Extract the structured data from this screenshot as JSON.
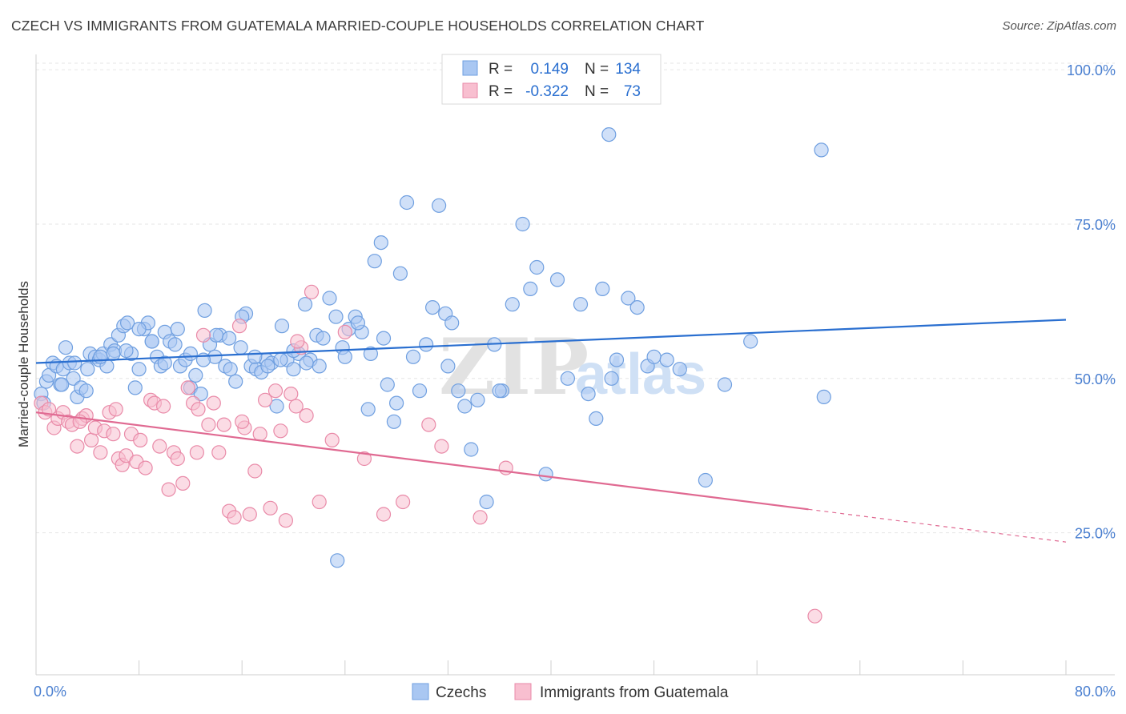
{
  "title": "CZECH VS IMMIGRANTS FROM GUATEMALA MARRIED-COUPLE HOUSEHOLDS CORRELATION CHART",
  "source": "Source: ZipAtlas.com",
  "watermark": {
    "zip": "ZIP",
    "atlas": "atlas"
  },
  "legend_top": [
    {
      "r_label": "R =",
      "r_value": "0.149",
      "n_label": "N =",
      "n_value": "134",
      "color": "#a9c7f2",
      "border": "#6f9fe0"
    },
    {
      "r_label": "R =",
      "r_value": "-0.322",
      "n_label": "N =",
      "n_value": "73",
      "color": "#f8bfd0",
      "border": "#e98aa8"
    }
  ],
  "legend_bottom": [
    {
      "label": "Czechs",
      "color": "#a9c7f2",
      "border": "#6f9fe0"
    },
    {
      "label": "Immigrants from Guatemala",
      "color": "#f8bfd0",
      "border": "#e98aa8"
    }
  ],
  "chart_data": {
    "type": "scatter",
    "title": "CZECH VS IMMIGRANTS FROM GUATEMALA MARRIED-COUPLE HOUSEHOLDS CORRELATION CHART",
    "xlabel": "",
    "ylabel": "Married-couple Households",
    "xlim": [
      0,
      80
    ],
    "ylim": [
      2,
      103
    ],
    "x_tick_labels": [
      "0.0%",
      "80.0%"
    ],
    "y_ticks": [
      25,
      50,
      75,
      100
    ],
    "y_tick_labels": [
      "25.0%",
      "50.0%",
      "75.0%",
      "100.0%"
    ],
    "grid": true,
    "series": [
      {
        "name": "Czechs",
        "color": "#6f9fe0",
        "fill": "#a9c7f2",
        "line_color": "#2a6fd0",
        "trend": {
          "x": [
            0,
            80
          ],
          "y": [
            52.5,
            59.5
          ]
        },
        "points": [
          [
            0.4,
            47.5
          ],
          [
            0.6,
            46.0
          ],
          [
            0.8,
            49.5
          ],
          [
            1.0,
            50.5
          ],
          [
            1.3,
            52.5
          ],
          [
            1.6,
            52.0
          ],
          [
            1.9,
            49.0
          ],
          [
            2.1,
            51.5
          ],
          [
            2.3,
            55.0
          ],
          [
            2.6,
            52.5
          ],
          [
            2.9,
            50.0
          ],
          [
            3.2,
            47.0
          ],
          [
            3.5,
            48.5
          ],
          [
            3.9,
            48.0
          ],
          [
            4.2,
            54.0
          ],
          [
            4.6,
            53.5
          ],
          [
            4.9,
            53.0
          ],
          [
            5.2,
            54.0
          ],
          [
            5.5,
            52.0
          ],
          [
            5.8,
            55.5
          ],
          [
            6.1,
            54.5
          ],
          [
            6.4,
            57.0
          ],
          [
            6.8,
            58.5
          ],
          [
            7.1,
            59.0
          ],
          [
            7.4,
            54.0
          ],
          [
            7.7,
            48.5
          ],
          [
            8.0,
            51.5
          ],
          [
            8.4,
            58.0
          ],
          [
            8.7,
            59.0
          ],
          [
            9.0,
            56.0
          ],
          [
            9.4,
            53.5
          ],
          [
            9.7,
            52.0
          ],
          [
            10.0,
            57.5
          ],
          [
            10.4,
            56.0
          ],
          [
            10.8,
            55.5
          ],
          [
            11.2,
            52.0
          ],
          [
            11.6,
            53.0
          ],
          [
            12.0,
            48.5
          ],
          [
            12.4,
            50.5
          ],
          [
            12.8,
            47.5
          ],
          [
            13.1,
            61.0
          ],
          [
            13.5,
            55.5
          ],
          [
            13.9,
            53.5
          ],
          [
            14.3,
            57.0
          ],
          [
            14.7,
            52.0
          ],
          [
            15.1,
            51.5
          ],
          [
            15.5,
            49.5
          ],
          [
            15.9,
            55.0
          ],
          [
            16.3,
            60.5
          ],
          [
            16.7,
            52.0
          ],
          [
            17.1,
            51.5
          ],
          [
            17.5,
            51.0
          ],
          [
            17.9,
            53.0
          ],
          [
            18.3,
            52.5
          ],
          [
            18.7,
            45.5
          ],
          [
            19.1,
            58.5
          ],
          [
            19.5,
            53.0
          ],
          [
            20.0,
            51.5
          ],
          [
            20.4,
            54.0
          ],
          [
            20.9,
            62.0
          ],
          [
            21.3,
            53.0
          ],
          [
            21.8,
            57.0
          ],
          [
            22.3,
            56.5
          ],
          [
            22.8,
            63.0
          ],
          [
            23.3,
            60.0
          ],
          [
            23.8,
            55.0
          ],
          [
            24.3,
            58.0
          ],
          [
            24.8,
            60.0
          ],
          [
            25.3,
            57.5
          ],
          [
            25.8,
            45.0
          ],
          [
            26.3,
            69.0
          ],
          [
            26.8,
            72.0
          ],
          [
            27.3,
            49.0
          ],
          [
            27.8,
            43.0
          ],
          [
            28.3,
            67.0
          ],
          [
            28.8,
            78.5
          ],
          [
            29.3,
            53.5
          ],
          [
            29.8,
            48.0
          ],
          [
            30.3,
            55.5
          ],
          [
            30.8,
            61.5
          ],
          [
            31.3,
            78.0
          ],
          [
            31.8,
            60.5
          ],
          [
            32.3,
            59.0
          ],
          [
            32.8,
            48.0
          ],
          [
            33.3,
            45.5
          ],
          [
            33.8,
            38.5
          ],
          [
            34.3,
            46.5
          ],
          [
            35.0,
            30.0
          ],
          [
            35.6,
            55.5
          ],
          [
            36.2,
            48.0
          ],
          [
            37.0,
            62.0
          ],
          [
            37.8,
            75.0
          ],
          [
            38.4,
            64.5
          ],
          [
            38.9,
            68.0
          ],
          [
            39.6,
            34.5
          ],
          [
            40.5,
            66.0
          ],
          [
            41.3,
            50.0
          ],
          [
            42.3,
            62.0
          ],
          [
            42.9,
            47.5
          ],
          [
            43.5,
            43.5
          ],
          [
            44.0,
            64.5
          ],
          [
            44.7,
            50.0
          ],
          [
            45.1,
            53.0
          ],
          [
            46.0,
            63.0
          ],
          [
            46.7,
            61.5
          ],
          [
            47.5,
            52.0
          ],
          [
            48.0,
            53.5
          ],
          [
            49.0,
            53.0
          ],
          [
            50.0,
            51.5
          ],
          [
            52.0,
            33.5
          ],
          [
            53.5,
            49.0
          ],
          [
            55.5,
            56.0
          ],
          [
            44.5,
            89.5
          ],
          [
            61.0,
            87.0
          ],
          [
            61.2,
            47.0
          ],
          [
            36.0,
            48.0
          ],
          [
            32.0,
            52.0
          ],
          [
            28.0,
            46.0
          ],
          [
            26.0,
            54.0
          ],
          [
            24.0,
            53.5
          ],
          [
            22.0,
            52.0
          ],
          [
            20.0,
            54.5
          ],
          [
            18.0,
            52.0
          ],
          [
            16.0,
            60.0
          ],
          [
            14.0,
            57.0
          ],
          [
            12.0,
            54.0
          ],
          [
            10.0,
            52.5
          ],
          [
            8.0,
            58.0
          ],
          [
            6.0,
            54.0
          ],
          [
            4.0,
            51.5
          ],
          [
            2.0,
            49.0
          ],
          [
            3.0,
            52.5
          ],
          [
            5.0,
            53.5
          ],
          [
            7.0,
            54.5
          ],
          [
            9.0,
            56.0
          ],
          [
            11.0,
            58.0
          ],
          [
            13.0,
            53.0
          ],
          [
            15.0,
            56.5
          ],
          [
            17.0,
            53.5
          ],
          [
            23.4,
            20.5
          ],
          [
            19.0,
            53.0
          ],
          [
            21.0,
            52.5
          ],
          [
            25.0,
            59.0
          ],
          [
            27.0,
            56.5
          ]
        ]
      },
      {
        "name": "Immigrants from Guatemala",
        "color": "#e98aa8",
        "fill": "#f8bfd0",
        "line_color": "#e06a92",
        "trend": {
          "x": [
            0,
            60
          ],
          "y": [
            44.5,
            28.8
          ]
        },
        "trend_dashed": {
          "x": [
            60,
            80
          ],
          "y": [
            28.8,
            23.5
          ]
        },
        "points": [
          [
            0.4,
            46.0
          ],
          [
            0.7,
            44.5
          ],
          [
            1.0,
            45.0
          ],
          [
            1.4,
            42.0
          ],
          [
            1.7,
            43.5
          ],
          [
            2.1,
            44.5
          ],
          [
            2.5,
            43.0
          ],
          [
            2.8,
            42.5
          ],
          [
            3.2,
            39.0
          ],
          [
            3.6,
            43.5
          ],
          [
            3.9,
            44.0
          ],
          [
            4.3,
            40.0
          ],
          [
            4.6,
            42.0
          ],
          [
            5.0,
            38.0
          ],
          [
            5.3,
            41.5
          ],
          [
            5.7,
            44.5
          ],
          [
            6.0,
            41.0
          ],
          [
            6.4,
            37.0
          ],
          [
            6.7,
            36.0
          ],
          [
            7.0,
            37.5
          ],
          [
            7.4,
            41.0
          ],
          [
            7.8,
            36.5
          ],
          [
            8.1,
            40.0
          ],
          [
            8.5,
            35.5
          ],
          [
            8.9,
            46.5
          ],
          [
            9.2,
            46.0
          ],
          [
            9.6,
            39.0
          ],
          [
            9.9,
            45.5
          ],
          [
            10.3,
            32.0
          ],
          [
            10.7,
            38.0
          ],
          [
            11.0,
            37.0
          ],
          [
            11.4,
            33.0
          ],
          [
            11.8,
            48.5
          ],
          [
            12.2,
            46.0
          ],
          [
            12.6,
            45.0
          ],
          [
            13.0,
            57.0
          ],
          [
            13.4,
            42.5
          ],
          [
            13.8,
            46.0
          ],
          [
            14.2,
            38.0
          ],
          [
            14.6,
            42.5
          ],
          [
            15.0,
            28.5
          ],
          [
            15.4,
            27.5
          ],
          [
            15.8,
            58.5
          ],
          [
            16.2,
            42.0
          ],
          [
            16.6,
            28.0
          ],
          [
            17.0,
            35.0
          ],
          [
            17.4,
            41.0
          ],
          [
            17.8,
            46.5
          ],
          [
            18.2,
            29.0
          ],
          [
            18.6,
            48.0
          ],
          [
            19.0,
            41.5
          ],
          [
            19.4,
            27.0
          ],
          [
            19.8,
            47.5
          ],
          [
            20.2,
            45.5
          ],
          [
            20.6,
            55.0
          ],
          [
            21.0,
            44.0
          ],
          [
            21.4,
            64.0
          ],
          [
            22.0,
            30.0
          ],
          [
            23.0,
            40.0
          ],
          [
            24.0,
            57.5
          ],
          [
            25.5,
            37.0
          ],
          [
            27.0,
            28.0
          ],
          [
            28.5,
            30.0
          ],
          [
            30.5,
            42.5
          ],
          [
            31.5,
            39.0
          ],
          [
            34.5,
            27.5
          ],
          [
            36.5,
            35.5
          ],
          [
            60.5,
            11.5
          ],
          [
            6.2,
            45.0
          ],
          [
            12.5,
            38.0
          ],
          [
            20.3,
            56.0
          ],
          [
            16.0,
            43.0
          ],
          [
            3.4,
            43.0
          ]
        ]
      }
    ]
  }
}
